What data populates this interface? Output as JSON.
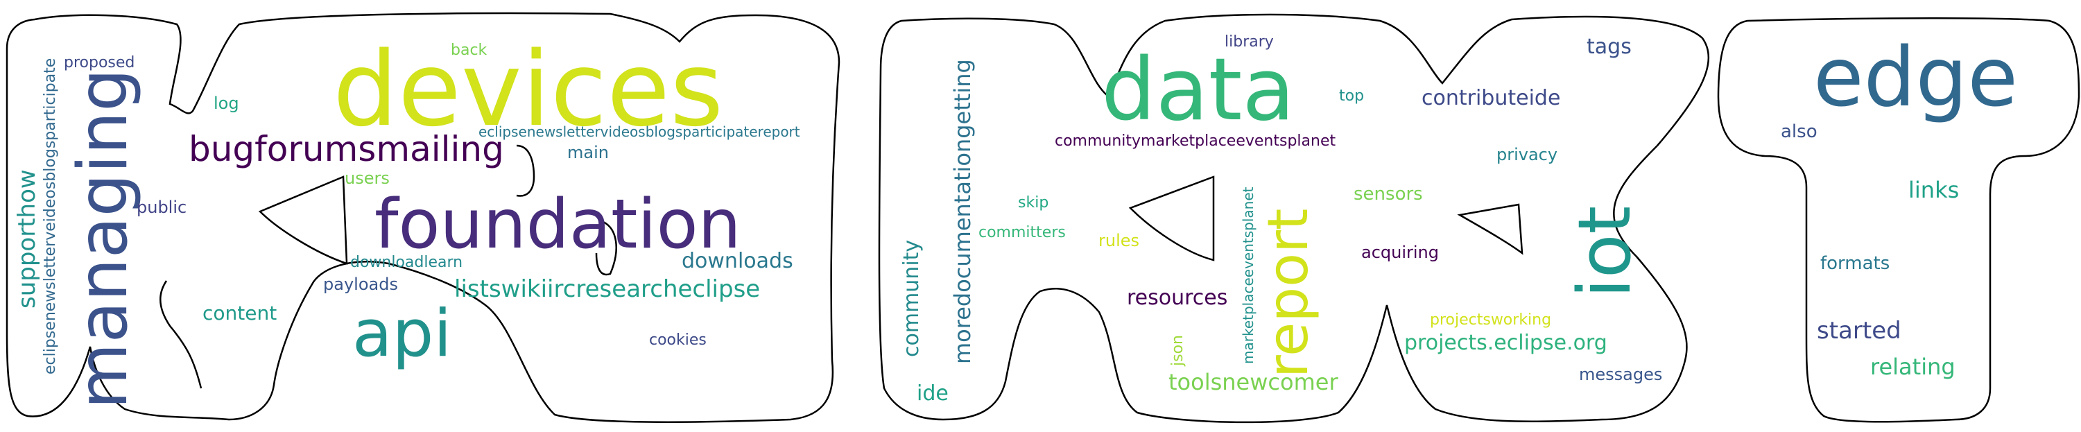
{
  "colors": {
    "background": "#ffffff",
    "outline": "#000000"
  },
  "words": {
    "devices": "devices",
    "foundation": "foundation",
    "managing": "managing",
    "api": "api",
    "bugforumsmailing": "bugforumsmailing",
    "listswikiircresearcheclipse": "listswikiircresearcheclipse",
    "downloads": "downloads",
    "supporthow": "supporthow",
    "eclipsenewsletter_vertical": "eclipsenewsletterveideosblogsparticipate",
    "eclipsenewsletter_horizontal": "eclipsenewslettervideosblogsparticipatereport",
    "proposed": "proposed",
    "back": "back",
    "log": "log",
    "public": "public",
    "users": "users",
    "main": "main",
    "downloadlearn": "downloadlearn",
    "payloads": "payloads",
    "content": "content",
    "cookies": "cookies",
    "data": "data",
    "report": "report",
    "iot": "iot",
    "moredocumentationgetting": "moredocumentationgetting",
    "community": "community",
    "communitymarketplaceeventsplanet": "communitymarketplaceeventsplanet",
    "library": "library",
    "top": "top",
    "contributeide": "contributeide",
    "tags": "tags",
    "privacy": "privacy",
    "sensors": "sensors",
    "acquiring": "acquiring",
    "skip": "skip",
    "committers": "committers",
    "rules": "rules",
    "marketplaceeventsplanet": "marketplaceeventsplanet",
    "resources": "resources",
    "json": "json",
    "toolsnewcomer": "toolsnewcomer",
    "projectsworking": "projectsworking",
    "projects_eclipse_org": "projects.eclipse.org",
    "messages": "messages",
    "ide": "ide",
    "edge": "edge",
    "also": "also",
    "links": "links",
    "formats": "formats",
    "started": "started",
    "relating": "relating"
  }
}
